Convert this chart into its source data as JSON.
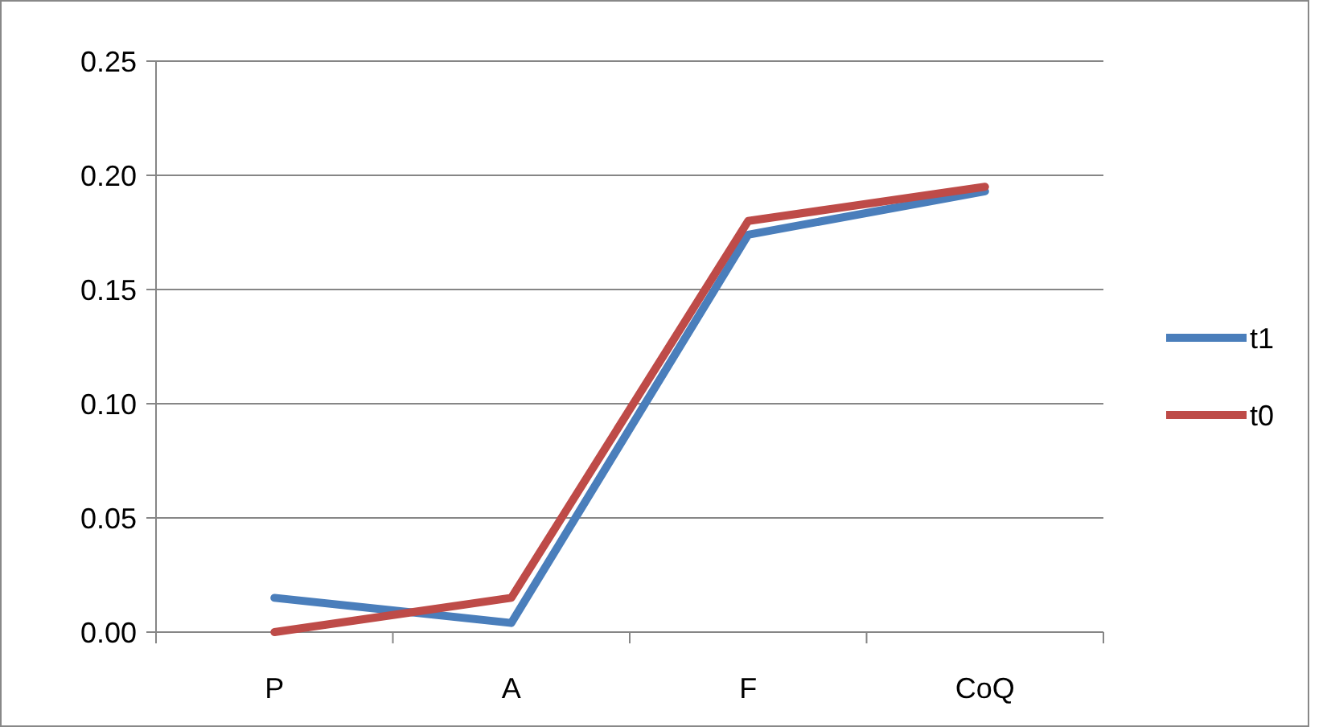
{
  "chart_data": {
    "type": "line",
    "categories": [
      "P",
      "A",
      "F",
      "CoQ"
    ],
    "series": [
      {
        "name": "t1",
        "color": "#4a7ebb",
        "values": [
          0.015,
          0.004,
          0.174,
          0.193
        ]
      },
      {
        "name": "t0",
        "color": "#be4b48",
        "values": [
          0,
          0.015,
          0.18,
          0.195
        ]
      }
    ],
    "ylim": [
      0,
      0.25
    ],
    "yticks": [
      {
        "value": 0,
        "label": "0.00"
      },
      {
        "value": 0.05,
        "label": "0.05"
      },
      {
        "value": 0.1,
        "label": "0.10"
      },
      {
        "value": 0.15,
        "label": "0.15"
      },
      {
        "value": 0.2,
        "label": "0.20"
      },
      {
        "value": 0.25,
        "label": "0.25"
      }
    ],
    "grid": "y",
    "legend": "right",
    "marker": "none",
    "line_style": "solid"
  }
}
